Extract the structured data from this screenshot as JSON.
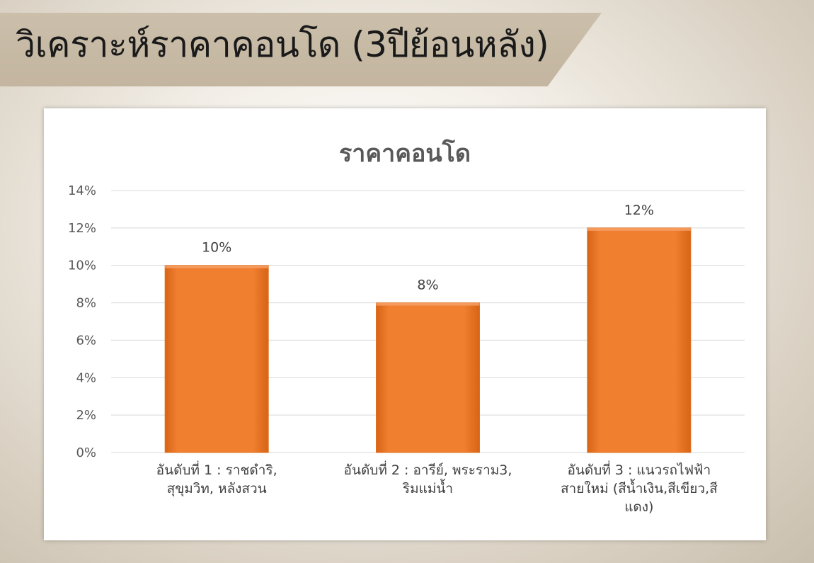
{
  "slide": {
    "heading": "วิเคราะห์ราคาคอนโด (3ปีย้อนหลัง)"
  },
  "colors": {
    "bar": "#ed7d31",
    "gridline": "#d9d9d9",
    "banner": "#c7baa4"
  },
  "chart_data": {
    "type": "bar",
    "title": "ราคาคอนโด",
    "categories": [
      [
        "อันดับที่ 1 : ราชดำริ,",
        "สุขุมวิท, หลังสวน"
      ],
      [
        "อันดับที่ 2 : อารีย์, พระราม3,",
        "ริมแม่น้ำ"
      ],
      [
        "อันดับที่ 3 : แนวรถไฟฟ้า",
        "สายใหม่ (สีน้ำเงิน,สีเขียว,สี",
        "แดง)"
      ]
    ],
    "values": [
      0.1,
      0.08,
      0.12
    ],
    "data_labels": [
      "10%",
      "8%",
      "12%"
    ],
    "ylim": [
      0,
      0.14
    ],
    "yticks": [
      "0%",
      "2%",
      "4%",
      "6%",
      "8%",
      "10%",
      "12%",
      "14%"
    ],
    "grid": true,
    "legend": "none"
  }
}
